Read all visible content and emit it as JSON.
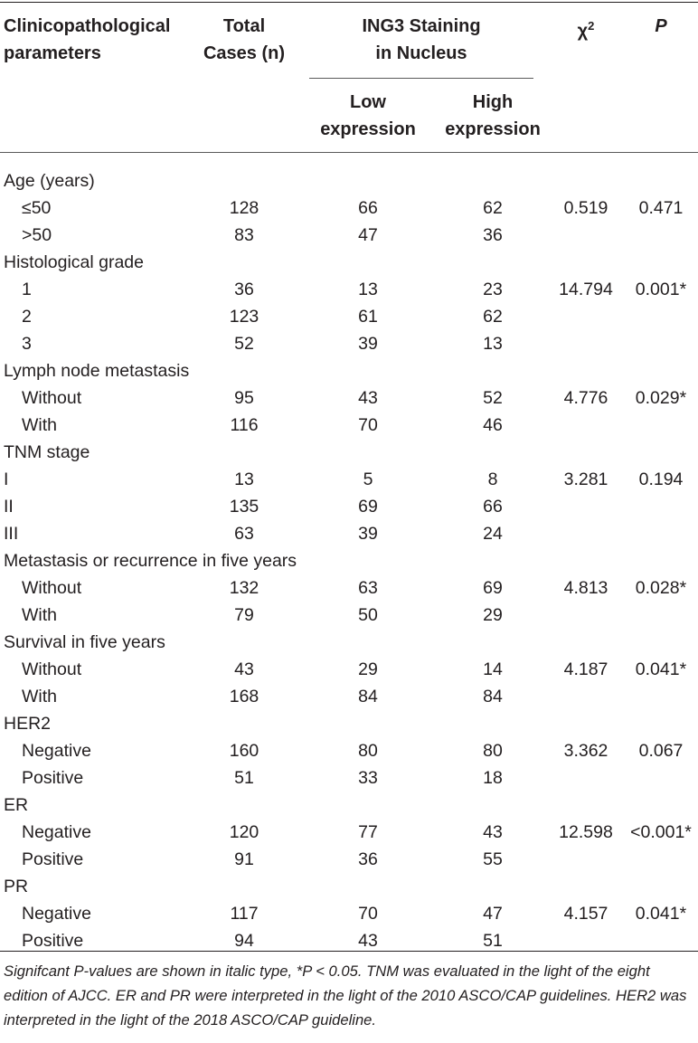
{
  "header": {
    "param": [
      "Clinicopathological",
      "parameters"
    ],
    "total": [
      "Total",
      "Cases (n)"
    ],
    "staining": [
      "ING3 Staining",
      "in Nucleus"
    ],
    "low": [
      "Low",
      "expression"
    ],
    "high": [
      "High",
      "expression"
    ],
    "chi_symbol": "χ",
    "chi_exp": "2",
    "p": "P"
  },
  "rows": [
    {
      "param": "Age (years)",
      "sub": false,
      "total": "",
      "low": "",
      "high": "",
      "chi": "",
      "p": ""
    },
    {
      "param": "≤50",
      "sub": true,
      "total": "128",
      "low": "66",
      "high": "62",
      "chi": "0.519",
      "p": "0.471"
    },
    {
      "param": ">50",
      "sub": true,
      "total": "83",
      "low": "47",
      "high": "36",
      "chi": "",
      "p": ""
    },
    {
      "param": "Histological grade",
      "sub": false,
      "total": "",
      "low": "",
      "high": "",
      "chi": "",
      "p": ""
    },
    {
      "param": "1",
      "sub": true,
      "total": "36",
      "low": "13",
      "high": "23",
      "chi": "14.794",
      "p": "0.001*"
    },
    {
      "param": "2",
      "sub": true,
      "total": "123",
      "low": "61",
      "high": "62",
      "chi": "",
      "p": ""
    },
    {
      "param": "3",
      "sub": true,
      "total": "52",
      "low": "39",
      "high": "13",
      "chi": "",
      "p": ""
    },
    {
      "param": "Lymph node metastasis",
      "sub": false,
      "total": "",
      "low": "",
      "high": "",
      "chi": "",
      "p": ""
    },
    {
      "param": "Without",
      "sub": true,
      "total": "95",
      "low": "43",
      "high": "52",
      "chi": "4.776",
      "p": "0.029*"
    },
    {
      "param": "With",
      "sub": true,
      "total": "116",
      "low": "70",
      "high": "46",
      "chi": "",
      "p": ""
    },
    {
      "param": "TNM stage",
      "sub": false,
      "total": "",
      "low": "",
      "high": "",
      "chi": "",
      "p": ""
    },
    {
      "param": "I",
      "sub": false,
      "total": "13",
      "low": "5",
      "high": "8",
      "chi": "3.281",
      "p": "0.194"
    },
    {
      "param": "II",
      "sub": false,
      "total": "135",
      "low": "69",
      "high": "66",
      "chi": "",
      "p": ""
    },
    {
      "param": "III",
      "sub": false,
      "total": "63",
      "low": "39",
      "high": "24",
      "chi": "",
      "p": ""
    },
    {
      "param": "Metastasis or recurrence in five years",
      "sub": false,
      "total": "",
      "low": "",
      "high": "",
      "chi": "",
      "p": ""
    },
    {
      "param": "Without",
      "sub": true,
      "total": "132",
      "low": "63",
      "high": "69",
      "chi": "4.813",
      "p": "0.028*"
    },
    {
      "param": "With",
      "sub": true,
      "total": "79",
      "low": "50",
      "high": "29",
      "chi": "",
      "p": ""
    },
    {
      "param": "Survival in five years",
      "sub": false,
      "total": "",
      "low": "",
      "high": "",
      "chi": "",
      "p": ""
    },
    {
      "param": "Without",
      "sub": true,
      "total": "43",
      "low": "29",
      "high": "14",
      "chi": "4.187",
      "p": "0.041*"
    },
    {
      "param": "With",
      "sub": true,
      "total": "168",
      "low": "84",
      "high": "84",
      "chi": "",
      "p": ""
    },
    {
      "param": "HER2",
      "sub": false,
      "total": "",
      "low": "",
      "high": "",
      "chi": "",
      "p": ""
    },
    {
      "param": "Negative",
      "sub": true,
      "total": "160",
      "low": "80",
      "high": "80",
      "chi": "3.362",
      "p": "0.067"
    },
    {
      "param": "Positive",
      "sub": true,
      "total": "51",
      "low": "33",
      "high": "18",
      "chi": "",
      "p": ""
    },
    {
      "param": "ER",
      "sub": false,
      "total": "",
      "low": "",
      "high": "",
      "chi": "",
      "p": ""
    },
    {
      "param": "Negative",
      "sub": true,
      "total": "120",
      "low": "77",
      "high": "43",
      "chi": "12.598",
      "p": "<0.001*"
    },
    {
      "param": "Positive",
      "sub": true,
      "total": "91",
      "low": "36",
      "high": "55",
      "chi": "",
      "p": ""
    },
    {
      "param": "PR",
      "sub": false,
      "total": "",
      "low": "",
      "high": "",
      "chi": "",
      "p": ""
    },
    {
      "param": "Negative",
      "sub": true,
      "total": "117",
      "low": "70",
      "high": "47",
      "chi": "4.157",
      "p": "0.041*"
    },
    {
      "param": "Positive",
      "sub": true,
      "total": "94",
      "low": "43",
      "high": "51",
      "chi": "",
      "p": ""
    }
  ],
  "footnote": "Signifcant P-values are shown in italic type, *P < 0.05. TNM was evaluated in the light of the eight edition of AJCC. ER and PR were interpreted in the light of the 2010 ASCO/CAP guidelines. HER2 was interpreted in the light of the 2018 ASCO/CAP guideline."
}
